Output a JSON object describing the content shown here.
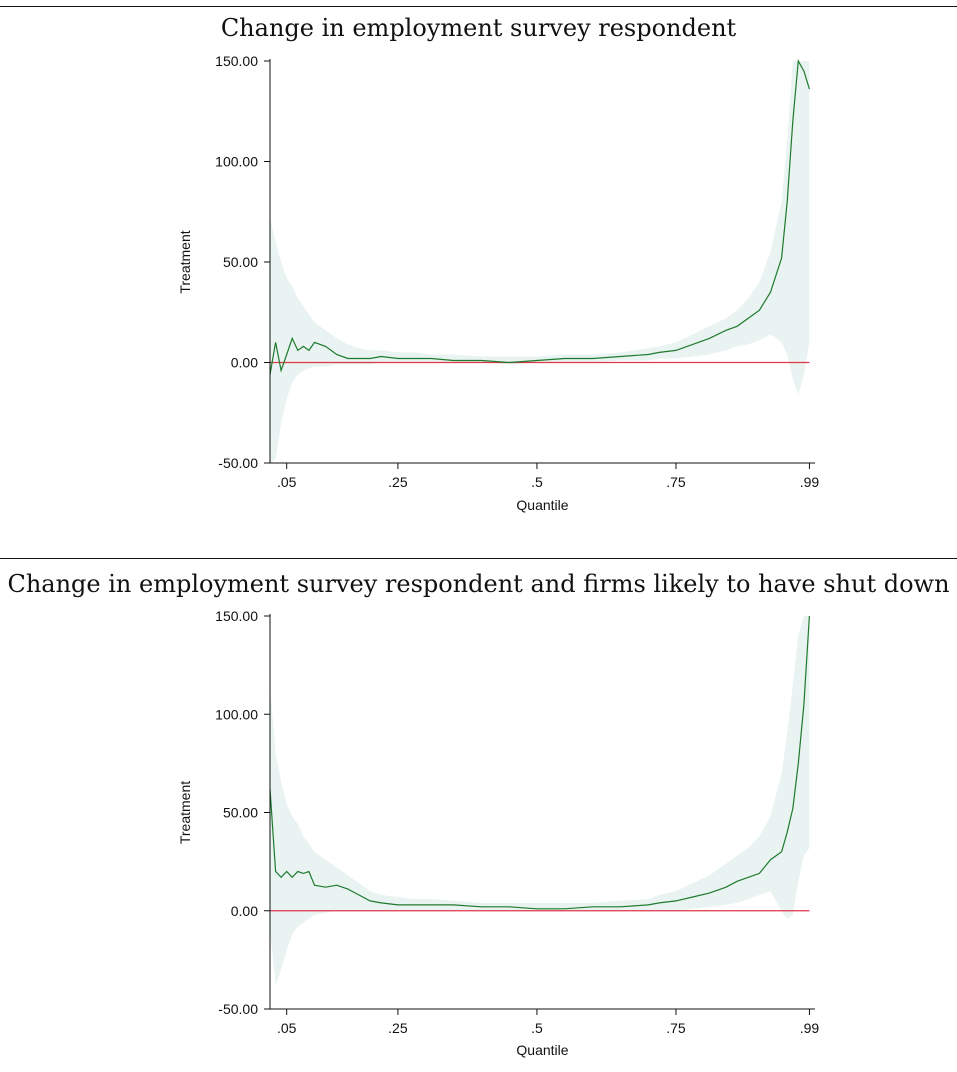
{
  "chart_data": [
    {
      "type": "line",
      "title": "Change in employment survey respondent",
      "xlabel": "Quantile",
      "ylabel": "Treatment",
      "xticks": [
        {
          "value": 0.05,
          "label": ".05"
        },
        {
          "value": 0.25,
          "label": ".25"
        },
        {
          "value": 0.5,
          "label": ".5"
        },
        {
          "value": 0.75,
          "label": ".75"
        },
        {
          "value": 0.99,
          "label": ".99"
        }
      ],
      "yticks": [
        {
          "value": -50,
          "label": "-50.00"
        },
        {
          "value": 0,
          "label": "0.00"
        },
        {
          "value": 50,
          "label": "50.00"
        },
        {
          "value": 100,
          "label": "100.00"
        },
        {
          "value": 150,
          "label": "150.00"
        }
      ],
      "xlim": [
        0.02,
        1.0
      ],
      "ylim": [
        -50,
        150
      ],
      "grid": false,
      "reference_line": {
        "y": 0,
        "color": "#e0364a"
      },
      "series_color": "#1e7a2e",
      "band_color": "#e9f3f1",
      "x": [
        0.02,
        0.03,
        0.04,
        0.05,
        0.06,
        0.07,
        0.08,
        0.09,
        0.1,
        0.12,
        0.14,
        0.16,
        0.18,
        0.2,
        0.22,
        0.25,
        0.28,
        0.31,
        0.35,
        0.4,
        0.45,
        0.5,
        0.55,
        0.6,
        0.65,
        0.7,
        0.72,
        0.75,
        0.78,
        0.81,
        0.84,
        0.86,
        0.88,
        0.9,
        0.92,
        0.94,
        0.95,
        0.96,
        0.97,
        0.98,
        0.99
      ],
      "values": [
        -6,
        10,
        -4,
        4,
        12,
        6,
        8,
        6,
        10,
        8,
        4,
        2,
        2,
        2,
        3,
        2,
        2,
        2,
        1,
        1,
        0,
        1,
        2,
        2,
        3,
        4,
        5,
        6,
        9,
        12,
        16,
        18,
        22,
        26,
        35,
        52,
        80,
        120,
        150,
        145,
        136
      ],
      "lower": [
        -50,
        -48,
        -30,
        -18,
        -10,
        -6,
        -4,
        -3,
        -2,
        -2,
        -1,
        -1,
        -1,
        -1,
        0,
        0,
        0,
        0,
        0,
        0,
        -1,
        0,
        0,
        0,
        1,
        1,
        2,
        2,
        3,
        4,
        6,
        8,
        9,
        11,
        14,
        10,
        4,
        -8,
        -16,
        -6,
        10
      ],
      "upper": [
        72,
        60,
        50,
        42,
        38,
        32,
        28,
        24,
        20,
        16,
        12,
        9,
        7,
        6,
        6,
        5,
        5,
        4,
        4,
        3,
        3,
        3,
        4,
        4,
        5,
        7,
        8,
        10,
        14,
        18,
        22,
        26,
        32,
        40,
        55,
        80,
        110,
        150,
        150,
        150,
        150
      ]
    },
    {
      "type": "line",
      "title": "Change in employment survey respondent and firms likely to have shut down",
      "xlabel": "Quantile",
      "ylabel": "Treatment",
      "xticks": [
        {
          "value": 0.05,
          "label": ".05"
        },
        {
          "value": 0.25,
          "label": ".25"
        },
        {
          "value": 0.5,
          "label": ".5"
        },
        {
          "value": 0.75,
          "label": ".75"
        },
        {
          "value": 0.99,
          "label": ".99"
        }
      ],
      "yticks": [
        {
          "value": -50,
          "label": "-50.00"
        },
        {
          "value": 0,
          "label": "0.00"
        },
        {
          "value": 50,
          "label": "50.00"
        },
        {
          "value": 100,
          "label": "100.00"
        },
        {
          "value": 150,
          "label": "150.00"
        }
      ],
      "xlim": [
        0.02,
        1.0
      ],
      "ylim": [
        -50,
        150
      ],
      "grid": false,
      "reference_line": {
        "y": 0,
        "color": "#e0364a"
      },
      "series_color": "#1e7a2e",
      "band_color": "#e9f3f1",
      "x": [
        0.02,
        0.03,
        0.04,
        0.05,
        0.06,
        0.07,
        0.08,
        0.09,
        0.1,
        0.12,
        0.14,
        0.16,
        0.18,
        0.2,
        0.22,
        0.25,
        0.28,
        0.31,
        0.35,
        0.4,
        0.45,
        0.5,
        0.55,
        0.6,
        0.65,
        0.7,
        0.72,
        0.75,
        0.78,
        0.81,
        0.84,
        0.86,
        0.88,
        0.9,
        0.92,
        0.94,
        0.95,
        0.96,
        0.97,
        0.98,
        0.99
      ],
      "values": [
        62,
        20,
        17,
        20,
        17,
        20,
        19,
        20,
        13,
        12,
        13,
        11,
        8,
        5,
        4,
        3,
        3,
        3,
        3,
        2,
        2,
        1,
        1,
        2,
        2,
        3,
        4,
        5,
        7,
        9,
        12,
        15,
        17,
        19,
        26,
        30,
        40,
        52,
        75,
        105,
        150
      ],
      "lower": [
        -10,
        -38,
        -30,
        -20,
        -12,
        -8,
        -6,
        -4,
        -2,
        -1,
        0,
        0,
        0,
        0,
        0,
        0,
        0,
        0,
        0,
        0,
        0,
        0,
        0,
        0,
        0,
        0,
        0,
        0,
        1,
        2,
        3,
        4,
        6,
        8,
        10,
        0,
        -4,
        -2,
        15,
        28,
        32
      ],
      "upper": [
        115,
        80,
        66,
        54,
        48,
        44,
        38,
        34,
        30,
        26,
        22,
        18,
        14,
        10,
        8,
        7,
        6,
        6,
        5,
        4,
        4,
        4,
        4,
        4,
        5,
        6,
        8,
        10,
        14,
        18,
        24,
        28,
        32,
        38,
        48,
        70,
        90,
        115,
        140,
        150,
        150
      ]
    }
  ]
}
